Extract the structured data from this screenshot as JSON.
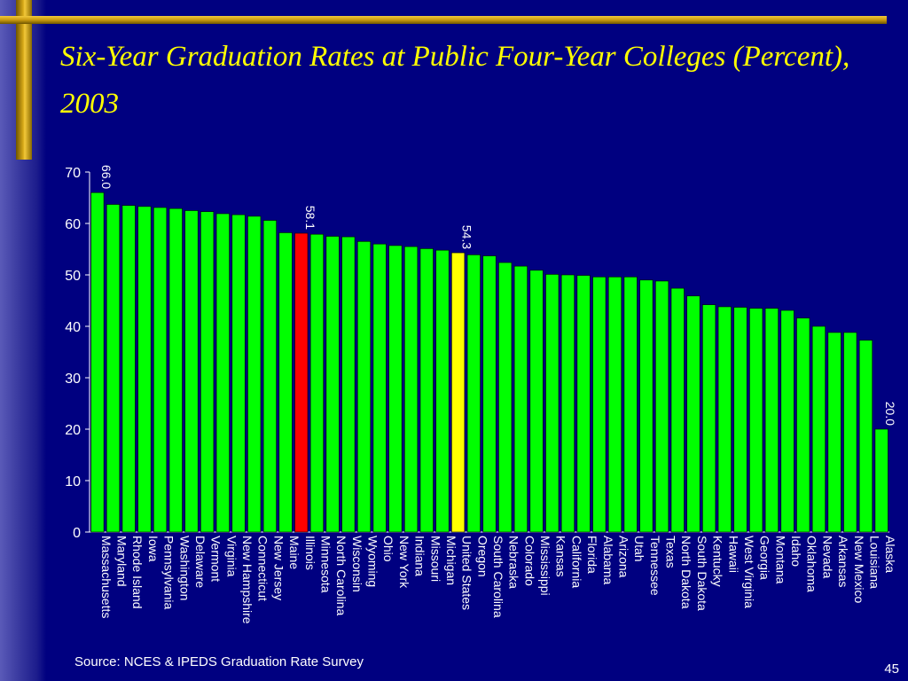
{
  "slide": {
    "title": "Six-Year Graduation Rates at Public Four-Year Colleges (Percent), 2003",
    "source": "Source:  NCES & IPEDS Graduation Rate Survey",
    "page_number": "45"
  },
  "colors": {
    "background": "#000080",
    "title": "#ffff00",
    "bar_default": "#00ff00",
    "bar_illinois": "#ff0000",
    "bar_united_states": "#ffff00",
    "text": "#ffffff"
  },
  "chart_data": {
    "type": "bar",
    "title": "",
    "xlabel": "",
    "ylabel": "",
    "ylim": [
      0,
      70
    ],
    "yticks": [
      0,
      10,
      20,
      30,
      40,
      50,
      60,
      70
    ],
    "grid": false,
    "categories": [
      "Massachusetts",
      "Maryland",
      "Rhode Island",
      "Iowa",
      "Pennsylvania",
      "Washington",
      "Delaware",
      "Vermont",
      "Virginia",
      "New Hampshire",
      "Connecticut",
      "New Jersey",
      "Maine",
      "Illinois",
      "Minnesota",
      "North Carolina",
      "Wisconsin",
      "Wyoming",
      "Ohio",
      "New York",
      "Indiana",
      "Missouri",
      "Michigan",
      "United States",
      "Oregon",
      "South Carolina",
      "Nebraska",
      "Colorado",
      "Mississippi",
      "Kansas",
      "California",
      "Florida",
      "Alabama",
      "Arizona",
      "Utah",
      "Tennessee",
      "Texas",
      "North Dakota",
      "South Dakota",
      "Kentucky",
      "Hawaii",
      "West Virginia",
      "Georgia",
      "Montana",
      "Idaho",
      "Oklahoma",
      "Nevada",
      "Arkansas",
      "New Mexico",
      "Louisiana",
      "Alaska"
    ],
    "values": [
      66.0,
      63.7,
      63.5,
      63.3,
      63.1,
      62.9,
      62.5,
      62.3,
      61.9,
      61.7,
      61.4,
      60.6,
      58.2,
      58.1,
      57.9,
      57.5,
      57.4,
      56.5,
      56.0,
      55.7,
      55.5,
      55.1,
      54.8,
      54.3,
      53.9,
      53.7,
      52.4,
      51.7,
      50.9,
      50.1,
      50.0,
      49.9,
      49.6,
      49.6,
      49.6,
      49.0,
      48.8,
      47.4,
      45.9,
      44.2,
      43.8,
      43.7,
      43.5,
      43.5,
      43.1,
      41.6,
      40.0,
      38.8,
      38.8,
      37.3,
      20.0
    ],
    "highlight": {
      "Illinois": "#ff0000",
      "United States": "#ffff00"
    },
    "data_labels": {
      "Massachusetts": "66.0",
      "Illinois": "58.1",
      "United States": "54.3",
      "Alaska": "20.0"
    }
  }
}
